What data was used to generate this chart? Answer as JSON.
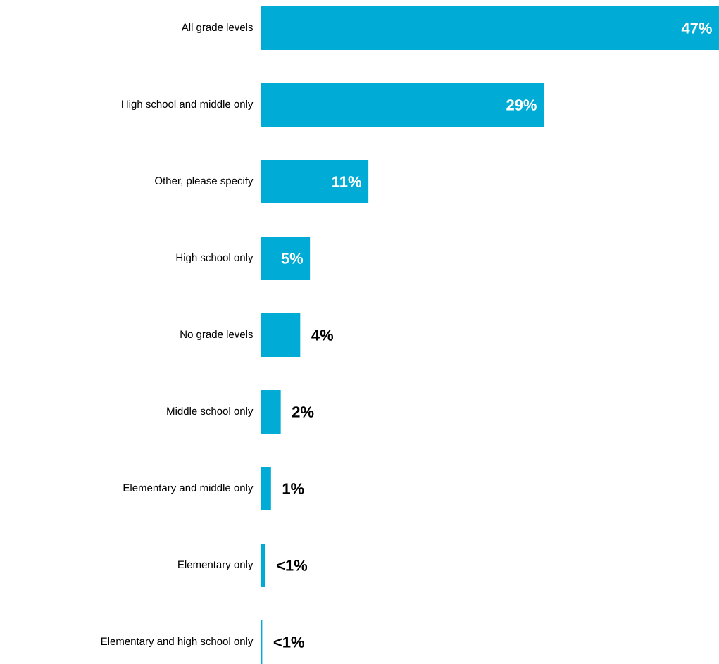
{
  "chart_data": {
    "type": "bar",
    "orientation": "horizontal",
    "categories": [
      "All grade levels",
      "High school and middle only",
      "Other, please specify",
      "High school only",
      "No grade levels",
      "Middle school only",
      "Elementary and middle only",
      "Elementary only",
      "Elementary and high school only"
    ],
    "values": [
      47,
      29,
      11,
      5,
      4,
      2,
      1,
      0.4,
      0.1
    ],
    "color": "#00acd6",
    "value_labels": [
      "47%",
      "29%",
      "11%",
      "5%",
      "4%",
      "2%",
      "1%",
      "<1%",
      "<1%"
    ]
  }
}
